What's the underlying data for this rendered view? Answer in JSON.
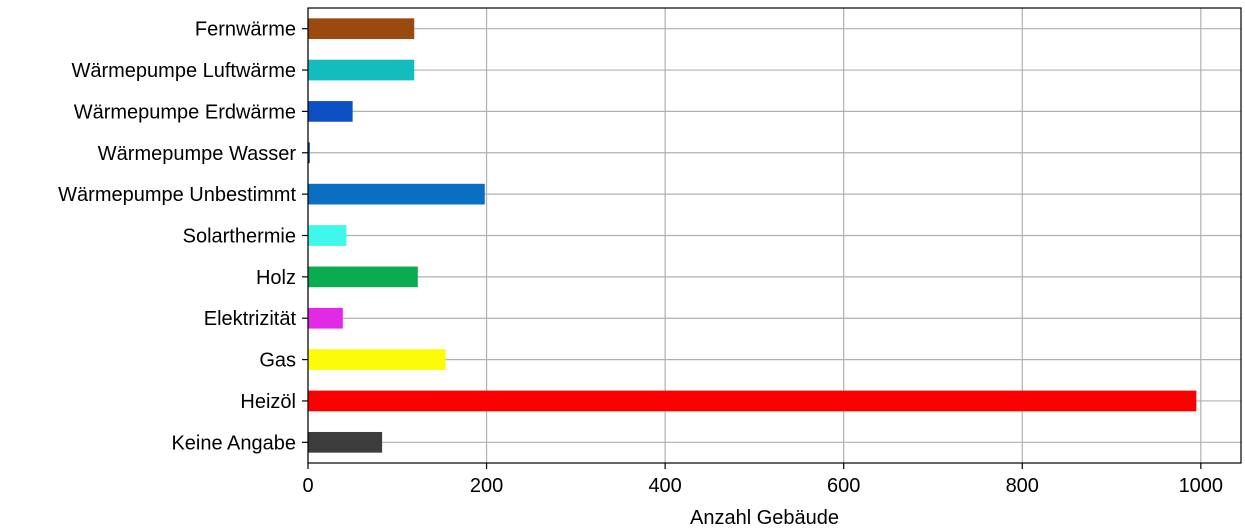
{
  "chart_data": {
    "type": "bar",
    "orientation": "horizontal",
    "title": "",
    "xlabel": "Anzahl Gebäude",
    "ylabel": "",
    "xlim": [
      0,
      1045
    ],
    "xticks": [
      0,
      200,
      400,
      600,
      800,
      1000
    ],
    "xtick_labels": [
      "0",
      "200",
      "400",
      "600",
      "800",
      "1000"
    ],
    "grid": true,
    "legend": "none",
    "categories": [
      "Fernwärme",
      "Wärmepumpe Luftwärme",
      "Wärmepumpe Erdwärme",
      "Wärmepumpe Wasser",
      "Wärmepumpe Unbestimmt",
      "Solarthermie",
      "Holz",
      "Elektrizität",
      "Gas",
      "Heizöl",
      "Keine Angabe"
    ],
    "values": [
      119,
      119,
      50,
      2,
      198,
      43,
      123,
      39,
      154,
      995,
      83
    ],
    "colors": [
      "#9b4a0f",
      "#14bdbd",
      "#0d50c3",
      "#0d3b85",
      "#0a6ec2",
      "#3ff7ea",
      "#0aac52",
      "#e22ae6",
      "#fbfb0a",
      "#fb0000",
      "#3c3c3c"
    ]
  }
}
